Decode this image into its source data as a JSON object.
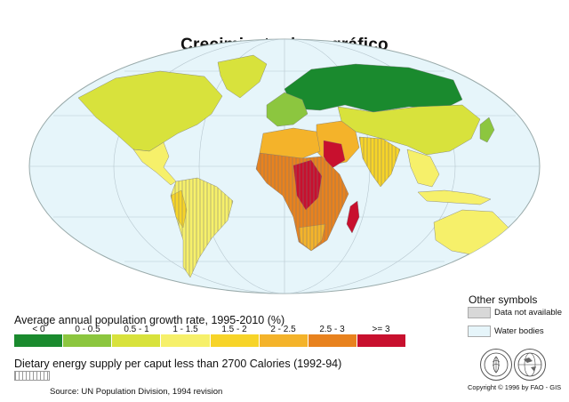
{
  "title": "Crecimiento demográfico",
  "legend": {
    "title": "Average annual population growth rate, 1995-2010 (%)",
    "classes": [
      {
        "label": "< 0",
        "color": "#1a8a2e"
      },
      {
        "label": "0 - 0.5",
        "color": "#8cc63f"
      },
      {
        "label": "0.5 - 1",
        "color": "#d8e23c"
      },
      {
        "label": "1 - 1.5",
        "color": "#f6f06a"
      },
      {
        "label": "1.5 - 2",
        "color": "#f7d428"
      },
      {
        "label": "2 - 2.5",
        "color": "#f4b32a"
      },
      {
        "label": "2.5 - 3",
        "color": "#e8821e"
      },
      {
        "label": ">= 3",
        "color": "#c8102e"
      }
    ]
  },
  "dietary": {
    "label": "Dietary energy supply per caput less than 2700 Calories (1992-94)"
  },
  "source": "Source: UN Population Division, 1994 revision",
  "other_symbols": {
    "title": "Other symbols",
    "items": [
      {
        "label": "Data not available"
      },
      {
        "label": "Water bodies"
      }
    ]
  },
  "copyright": "Copyright © 1996 by FAO - GIS",
  "icons": {
    "fao": "fao-logo-icon",
    "gis": "globe-logo-icon"
  }
}
